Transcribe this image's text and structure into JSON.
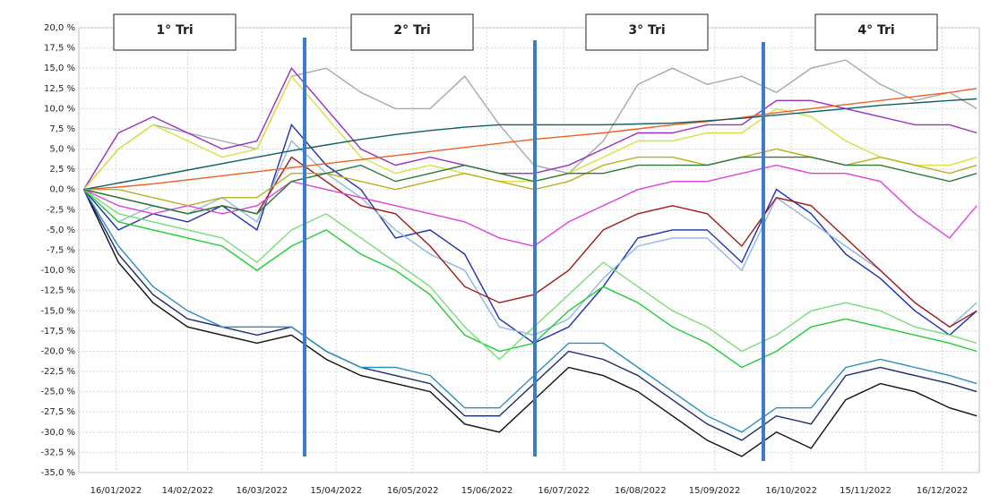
{
  "chart_data": {
    "type": "line",
    "annotations": [
      "1° Tri",
      "2° Tri",
      "3° Tri",
      "4° Tri"
    ],
    "x": [
      "03/01/2022",
      "17/01/2022",
      "31/01/2022",
      "14/02/2022",
      "28/02/2022",
      "14/03/2022",
      "28/03/2022",
      "11/04/2022",
      "25/04/2022",
      "09/05/2022",
      "23/05/2022",
      "06/06/2022",
      "20/06/2022",
      "04/07/2022",
      "18/07/2022",
      "01/08/2022",
      "15/08/2022",
      "29/08/2022",
      "12/09/2022",
      "26/09/2022",
      "10/10/2022",
      "24/10/2022",
      "07/11/2022",
      "21/11/2022",
      "05/12/2022",
      "19/12/2022",
      "30/12/2022"
    ],
    "series": [
      {
        "color": "#111111",
        "values": [
          0,
          -9,
          -14,
          -17,
          -18,
          -19,
          -18,
          -21,
          -23,
          -24,
          -25,
          -29,
          -30,
          -26,
          -22,
          -23,
          -25,
          -28,
          -31,
          -33,
          -30,
          -32,
          -26,
          -24,
          -25,
          -27,
          -28
        ]
      },
      {
        "color": "#1a2a6c",
        "values": [
          0,
          -8,
          -13,
          -16,
          -17,
          -18,
          -17,
          -20,
          -22,
          -23,
          -24,
          -28,
          -28,
          -24,
          -20,
          -21,
          -23,
          -26,
          -29,
          -31,
          -28,
          -29,
          -23,
          -22,
          -23,
          -24,
          -25
        ]
      },
      {
        "color": "#2a8fc0",
        "values": [
          0,
          -7,
          -12,
          -15,
          -17,
          -17,
          -17,
          -20,
          -22,
          -22,
          -23,
          -27,
          -27,
          -23,
          -19,
          -19,
          -22,
          -25,
          -28,
          -30,
          -27,
          -27,
          -22,
          -21,
          -22,
          -23,
          -24
        ]
      },
      {
        "color": "#1c2fb0",
        "values": [
          0,
          -5,
          -3,
          -4,
          -2,
          -5,
          8,
          3,
          0,
          -6,
          -5,
          -8,
          -16,
          -19,
          -17,
          -12,
          -6,
          -5,
          -5,
          -9,
          0,
          -3,
          -8,
          -11,
          -15,
          -18,
          -15
        ]
      },
      {
        "color": "#8fb8e0",
        "values": [
          0,
          -4,
          -2,
          -3,
          -1,
          -4,
          6,
          2,
          -1,
          -5,
          -8,
          -10,
          -17,
          -18,
          -16,
          -11,
          -7,
          -6,
          -6,
          -10,
          -1,
          -4,
          -7,
          -10,
          -14,
          -17,
          -14
        ]
      },
      {
        "color": "#a01818",
        "values": [
          0,
          -1,
          -2,
          -3,
          -2,
          -3,
          4,
          1,
          -2,
          -3,
          -7,
          -12,
          -14,
          -13,
          -10,
          -5,
          -3,
          -2,
          -3,
          -7,
          -1,
          -2,
          -6,
          -10,
          -14,
          -17,
          -15
        ]
      },
      {
        "color": "#22cc33",
        "values": [
          0,
          -4,
          -5,
          -6,
          -7,
          -10,
          -7,
          -5,
          -8,
          -10,
          -13,
          -18,
          -20,
          -19,
          -15,
          -12,
          -14,
          -17,
          -19,
          -22,
          -20,
          -17,
          -16,
          -17,
          -18,
          -19,
          -20
        ]
      },
      {
        "color": "#77dd77",
        "values": [
          0,
          -3,
          -4,
          -5,
          -6,
          -9,
          -5,
          -3,
          -6,
          -9,
          -12,
          -17,
          -21,
          -17,
          -13,
          -9,
          -12,
          -15,
          -17,
          -20,
          -18,
          -15,
          -14,
          -15,
          -17,
          -18,
          -19
        ]
      },
      {
        "color": "#a8a8a8",
        "values": [
          0,
          5,
          8,
          7,
          6,
          5,
          14,
          15,
          12,
          10,
          10,
          14,
          8,
          3,
          2,
          6,
          13,
          15,
          13,
          14,
          12,
          15,
          16,
          13,
          11,
          12,
          10
        ]
      },
      {
        "color": "#9a2fc0",
        "values": [
          0,
          7,
          9,
          7,
          5,
          6,
          15,
          10,
          5,
          3,
          4,
          3,
          2,
          2,
          3,
          5,
          7,
          7,
          8,
          8,
          11,
          11,
          10,
          9,
          8,
          8,
          7
        ]
      },
      {
        "color": "#d8e040",
        "values": [
          0,
          5,
          8,
          6,
          4,
          5,
          14,
          9,
          4,
          2,
          3,
          2,
          1,
          1,
          2,
          4,
          6,
          6,
          7,
          7,
          10,
          9,
          6,
          4,
          3,
          3,
          4
        ]
      },
      {
        "color": "#e040e0",
        "values": [
          0,
          -2,
          -3,
          -2,
          -3,
          -2,
          1,
          0,
          -1,
          -2,
          -3,
          -4,
          -6,
          -7,
          -4,
          -2,
          0,
          1,
          1,
          2,
          3,
          2,
          2,
          1,
          -3,
          -6,
          -2
        ]
      },
      {
        "color": "#f06020",
        "values": [
          0,
          0.3,
          0.7,
          1.2,
          1.7,
          2.2,
          2.7,
          3.2,
          3.7,
          4.2,
          4.7,
          5.2,
          5.7,
          6.2,
          6.6,
          7,
          7.5,
          8,
          8.4,
          8.9,
          9.5,
          10,
          10.5,
          11,
          11.5,
          12,
          12.5
        ]
      },
      {
        "color": "#106060",
        "values": [
          0,
          0.8,
          1.6,
          2.4,
          3.2,
          4,
          4.8,
          5.5,
          6.2,
          6.8,
          7.3,
          7.7,
          8,
          8,
          8,
          8,
          8.1,
          8.2,
          8.5,
          8.8,
          9.2,
          9.6,
          10,
          10.4,
          10.7,
          11,
          11.2
        ]
      },
      {
        "color": "#b8b020",
        "values": [
          0,
          0,
          -1,
          -2,
          -1,
          -1,
          2,
          2,
          1,
          0,
          1,
          2,
          1,
          0,
          1,
          3,
          4,
          4,
          3,
          4,
          5,
          4,
          3,
          4,
          3,
          2,
          3
        ]
      },
      {
        "color": "#2a7a3a",
        "values": [
          0,
          -1,
          -2,
          -3,
          -2,
          -3,
          1,
          2,
          3,
          1,
          2,
          3,
          2,
          1,
          2,
          2,
          3,
          3,
          3,
          4,
          4,
          4,
          3,
          3,
          2,
          1,
          2
        ]
      }
    ],
    "xlim": [
      "01/01/2022",
      "31/12/2022"
    ],
    "xticks": [
      "16/01/2022",
      "14/02/2022",
      "16/03/2022",
      "15/04/2022",
      "16/05/2022",
      "15/06/2022",
      "16/07/2022",
      "16/08/2022",
      "15/09/2022",
      "16/10/2022",
      "15/11/2022",
      "16/12/2022"
    ],
    "ylim": [
      -35,
      20
    ],
    "yticks": [
      {
        "value": 20,
        "label": "20,0 %"
      },
      {
        "value": 17.5,
        "label": "17,5 %"
      },
      {
        "value": 15,
        "label": "15,0 %"
      },
      {
        "value": 12.5,
        "label": "12,5 %"
      },
      {
        "value": 10,
        "label": "10,0 %"
      },
      {
        "value": 7.5,
        "label": "7,5 %"
      },
      {
        "value": 5,
        "label": "5,0 %"
      },
      {
        "value": 2.5,
        "label": "2,5 %"
      },
      {
        "value": 0,
        "label": "0,0 %"
      },
      {
        "value": -2.5,
        "label": "-2,5 %"
      },
      {
        "value": -5,
        "label": "-5,0 %"
      },
      {
        "value": -7.5,
        "label": "-7,5 %"
      },
      {
        "value": -10,
        "label": "-10,0 %"
      },
      {
        "value": -12.5,
        "label": "-12,5 %"
      },
      {
        "value": -15,
        "label": "-15,0 %"
      },
      {
        "value": -17.5,
        "label": "-17,5 %"
      },
      {
        "value": -20,
        "label": "-20,0 %"
      },
      {
        "value": -22.5,
        "label": "-22,5 %"
      },
      {
        "value": -25,
        "label": "-25,0 %"
      },
      {
        "value": -27.5,
        "label": "-27,5 %"
      },
      {
        "value": -30,
        "label": "-30,0 %"
      },
      {
        "value": -32.5,
        "label": "-32,5 %"
      },
      {
        "value": -35,
        "label": "-35,0 %"
      }
    ],
    "grid": true
  }
}
